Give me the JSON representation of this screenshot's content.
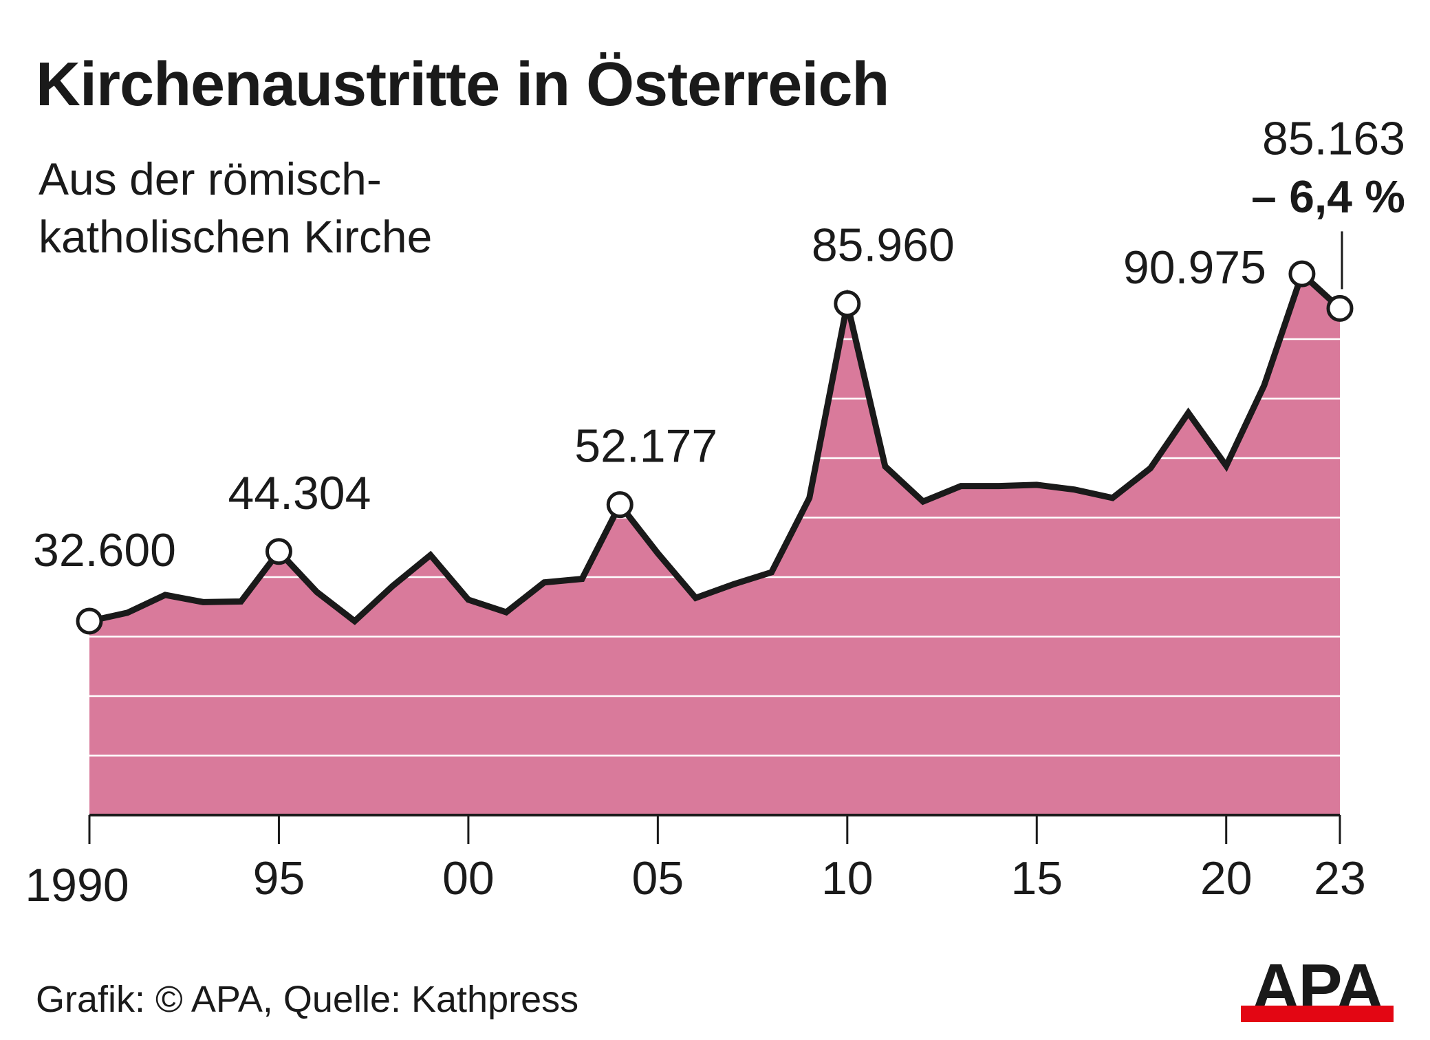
{
  "title": "Kirchenaustritte in Österreich",
  "subtitle": "Aus der römisch-\nkatholischen Kirche",
  "footer": "Grafik: © APA, Quelle: Kathpress",
  "logo_text": "APA",
  "colors": {
    "area": "#d97a9b",
    "line": "#1a1a1a",
    "grid": "#ffffff",
    "logo_bar": "#e30613"
  },
  "chart_data": {
    "type": "area",
    "x": [
      1990,
      1991,
      1992,
      1993,
      1994,
      1995,
      1996,
      1997,
      1998,
      1999,
      2000,
      2001,
      2002,
      2003,
      2004,
      2005,
      2006,
      2007,
      2008,
      2009,
      2010,
      2011,
      2012,
      2013,
      2014,
      2015,
      2016,
      2017,
      2018,
      2019,
      2020,
      2021,
      2022,
      2023
    ],
    "values": [
      32600,
      34000,
      37000,
      35800,
      35900,
      44304,
      37500,
      32600,
      38500,
      43700,
      36200,
      34100,
      39100,
      39700,
      52177,
      44000,
      36500,
      38800,
      40800,
      53300,
      85960,
      58600,
      52700,
      55300,
      55300,
      55500,
      54700,
      53300,
      58300,
      67600,
      58700,
      72200,
      90975,
      85163
    ],
    "tick_labels": [
      {
        "x": 1990,
        "label": "1990"
      },
      {
        "x": 1995,
        "label": "95"
      },
      {
        "x": 2000,
        "label": "00"
      },
      {
        "x": 2005,
        "label": "05"
      },
      {
        "x": 2010,
        "label": "10"
      },
      {
        "x": 2015,
        "label": "15"
      },
      {
        "x": 2020,
        "label": "20"
      },
      {
        "x": 2023,
        "label": "23"
      }
    ],
    "annotations": [
      {
        "x": 1990,
        "label": "32.600"
      },
      {
        "x": 1995,
        "label": "44.304"
      },
      {
        "x": 2004,
        "label": "52.177"
      },
      {
        "x": 2010,
        "label": "85.960"
      },
      {
        "x": 2022,
        "label": "90.975"
      },
      {
        "x": 2023,
        "label": "85.163",
        "sub_label": "– 6,4 %"
      }
    ],
    "xlim": [
      1990,
      2023
    ],
    "ylim": [
      0,
      100000
    ],
    "gridlines": [
      10000,
      20000,
      30000,
      40000,
      50000,
      60000,
      70000,
      80000
    ],
    "grid": true,
    "legend": "none"
  }
}
